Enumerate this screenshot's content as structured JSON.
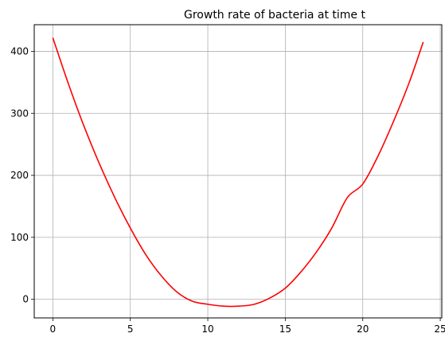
{
  "chart_data": {
    "type": "line",
    "title": "Growth rate of bacteria at time t",
    "xlabel": "",
    "ylabel": "",
    "xlim": [
      -1.2,
      25.1
    ],
    "ylim": [
      -30,
      443
    ],
    "xticks": [
      0,
      5,
      10,
      15,
      20,
      25
    ],
    "yticks": [
      0,
      100,
      200,
      300,
      400
    ],
    "grid": true,
    "series": [
      {
        "color": "#ff0000",
        "x": [
          0,
          1,
          2,
          3,
          4,
          5,
          6,
          7,
          8,
          9,
          10,
          11,
          12,
          13,
          14,
          15,
          16,
          17,
          18,
          19,
          20,
          21,
          22,
          23,
          23.9
        ],
        "y": [
          422,
          348,
          280,
          219,
          164,
          115,
          72,
          38,
          12,
          -3,
          -8,
          -11,
          -11,
          -8,
          2,
          18,
          44,
          76,
          115,
          164,
          186,
          232,
          288,
          350,
          415
        ]
      }
    ]
  },
  "colors": {
    "line": "#ff0000",
    "grid": "#b0b0b0",
    "axis": "#000000"
  }
}
